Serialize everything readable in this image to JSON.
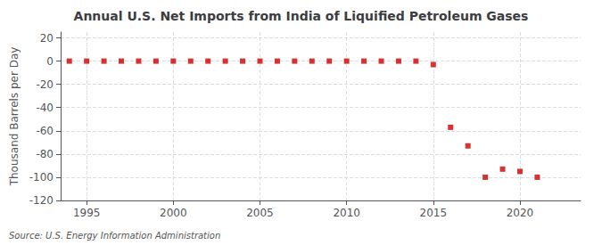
{
  "chart_data": {
    "type": "scatter",
    "title": "Annual U.S. Net Imports from India of Liquified Petroleum Gases",
    "ylabel": "Thousand Barrels per Day",
    "source": "Source: U.S. Energy Information Administration",
    "x": [
      1994,
      1995,
      1996,
      1997,
      1998,
      1999,
      2000,
      2001,
      2002,
      2003,
      2004,
      2005,
      2006,
      2007,
      2008,
      2009,
      2010,
      2011,
      2012,
      2013,
      2014,
      2015,
      2016,
      2017,
      2018,
      2019,
      2020,
      2021
    ],
    "values": [
      0,
      0,
      0,
      0,
      0,
      0,
      0,
      0,
      0,
      0,
      0,
      0,
      0,
      0,
      0,
      0,
      0,
      0,
      0,
      0,
      0,
      -3,
      -57,
      -73,
      -100,
      -93,
      -95,
      -100
    ],
    "color": "#cc0000",
    "marker": "square",
    "xlim": [
      1993.5,
      2023.5
    ],
    "xticks": [
      1995,
      2000,
      2005,
      2010,
      2015,
      2020
    ],
    "ylim": [
      -120,
      25
    ],
    "yticks": [
      20,
      0,
      -20,
      -40,
      -60,
      -80,
      -100,
      -120
    ],
    "grid": true
  }
}
